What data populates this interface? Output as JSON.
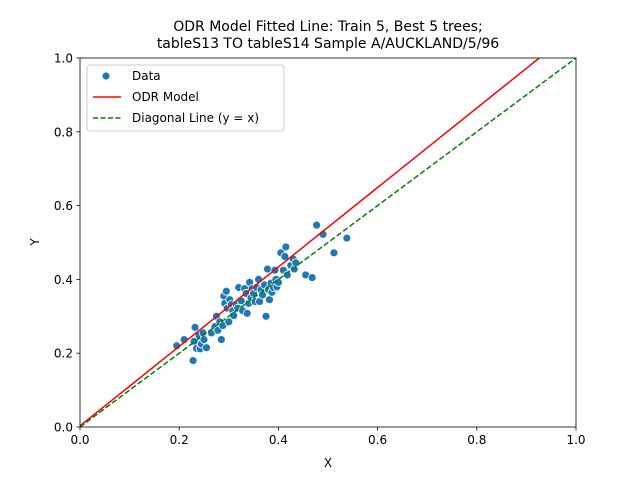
{
  "chart_data": {
    "type": "scatter",
    "title_line1": "ODR Model Fitted Line: Train 5, Best 5 trees;",
    "title_line2": "tableS13 TO tableS14 Sample A/AUCKLAND/5/96",
    "xlabel": "X",
    "ylabel": "Y",
    "xlim": [
      0.0,
      1.0
    ],
    "ylim": [
      0.0,
      1.0
    ],
    "x_ticks": [
      "0.0",
      "0.2",
      "0.4",
      "0.6",
      "0.8",
      "1.0"
    ],
    "y_ticks": [
      "0.0",
      "0.2",
      "0.4",
      "0.6",
      "0.8",
      "1.0"
    ],
    "grid": false,
    "legend_position": "upper-left",
    "series": [
      {
        "name": "Data",
        "kind": "scatter",
        "color": "#1f77b4",
        "points": [
          [
            0.195,
            0.22
          ],
          [
            0.21,
            0.237
          ],
          [
            0.228,
            0.18
          ],
          [
            0.23,
            0.232
          ],
          [
            0.232,
            0.27
          ],
          [
            0.235,
            0.213
          ],
          [
            0.24,
            0.248
          ],
          [
            0.242,
            0.212
          ],
          [
            0.245,
            0.225
          ],
          [
            0.248,
            0.255
          ],
          [
            0.25,
            0.237
          ],
          [
            0.255,
            0.215
          ],
          [
            0.265,
            0.255
          ],
          [
            0.272,
            0.272
          ],
          [
            0.275,
            0.3
          ],
          [
            0.278,
            0.262
          ],
          [
            0.282,
            0.285
          ],
          [
            0.285,
            0.237
          ],
          [
            0.288,
            0.275
          ],
          [
            0.29,
            0.355
          ],
          [
            0.292,
            0.335
          ],
          [
            0.295,
            0.368
          ],
          [
            0.297,
            0.322
          ],
          [
            0.3,
            0.285
          ],
          [
            0.302,
            0.345
          ],
          [
            0.305,
            0.332
          ],
          [
            0.308,
            0.315
          ],
          [
            0.31,
            0.302
          ],
          [
            0.315,
            0.332
          ],
          [
            0.318,
            0.322
          ],
          [
            0.32,
            0.378
          ],
          [
            0.325,
            0.342
          ],
          [
            0.328,
            0.315
          ],
          [
            0.332,
            0.375
          ],
          [
            0.335,
            0.362
          ],
          [
            0.337,
            0.308
          ],
          [
            0.34,
            0.335
          ],
          [
            0.342,
            0.392
          ],
          [
            0.345,
            0.35
          ],
          [
            0.347,
            0.375
          ],
          [
            0.35,
            0.362
          ],
          [
            0.353,
            0.34
          ],
          [
            0.356,
            0.378
          ],
          [
            0.36,
            0.4
          ],
          [
            0.362,
            0.34
          ],
          [
            0.365,
            0.372
          ],
          [
            0.368,
            0.358
          ],
          [
            0.372,
            0.385
          ],
          [
            0.375,
            0.3
          ],
          [
            0.378,
            0.428
          ],
          [
            0.38,
            0.372
          ],
          [
            0.382,
            0.345
          ],
          [
            0.385,
            0.39
          ],
          [
            0.387,
            0.365
          ],
          [
            0.39,
            0.378
          ],
          [
            0.393,
            0.425
          ],
          [
            0.395,
            0.4
          ],
          [
            0.397,
            0.38
          ],
          [
            0.4,
            0.392
          ],
          [
            0.405,
            0.472
          ],
          [
            0.41,
            0.425
          ],
          [
            0.413,
            0.462
          ],
          [
            0.415,
            0.488
          ],
          [
            0.418,
            0.412
          ],
          [
            0.425,
            0.438
          ],
          [
            0.43,
            0.455
          ],
          [
            0.432,
            0.428
          ],
          [
            0.435,
            0.445
          ],
          [
            0.455,
            0.412
          ],
          [
            0.468,
            0.405
          ],
          [
            0.477,
            0.547
          ],
          [
            0.49,
            0.522
          ],
          [
            0.512,
            0.472
          ],
          [
            0.538,
            0.512
          ]
        ]
      },
      {
        "name": "ODR Model",
        "kind": "line",
        "color": "#ff0000",
        "dash": "solid",
        "x": [
          0.0,
          0.926
        ],
        "y": [
          0.003,
          1.0
        ]
      },
      {
        "name": "Diagonal Line (y = x)",
        "kind": "line",
        "color": "#008000",
        "dash": "dashed",
        "x": [
          0.0,
          1.0
        ],
        "y": [
          0.0,
          1.0
        ]
      }
    ]
  }
}
